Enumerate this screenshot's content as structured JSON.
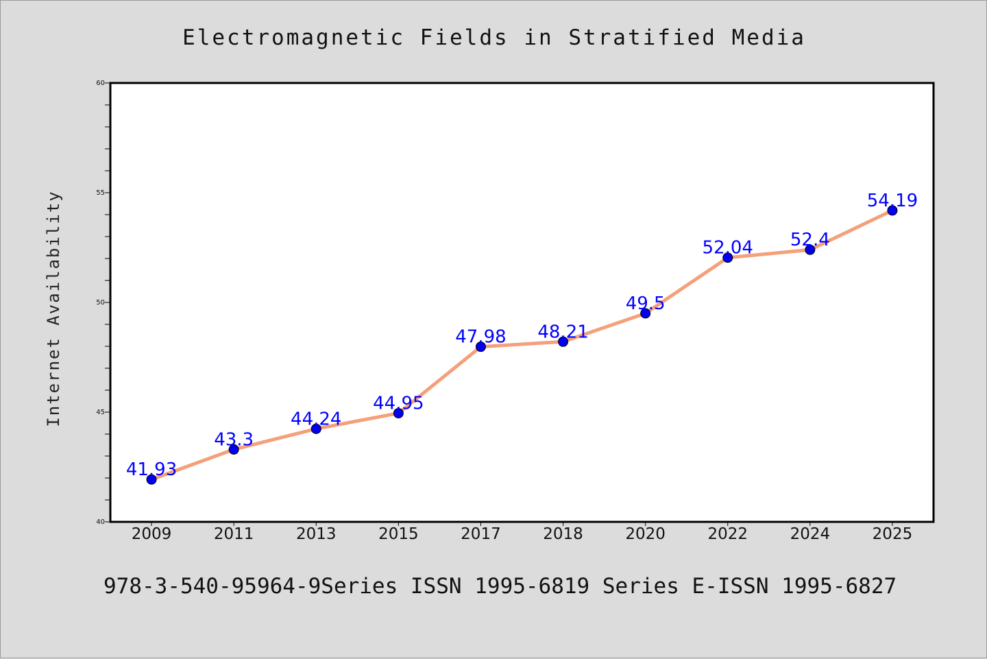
{
  "colors": {
    "background": "#dcdcdc",
    "plot_background": "#ffffff",
    "line": "#f4a07a",
    "marker": "#0000ee",
    "data_label": "#0000ff"
  },
  "footer": "978-3-540-95964-9Series ISSN 1995-6819 Series E-ISSN 1995-6827",
  "chart_data": {
    "type": "line",
    "title": "Electromagnetic Fields in Stratified Media",
    "xlabel": "",
    "ylabel": "Internet Availability",
    "categories": [
      "2009",
      "2011",
      "2013",
      "2015",
      "2017",
      "2018",
      "2020",
      "2022",
      "2024",
      "2025"
    ],
    "series": [
      {
        "values": [
          41.93,
          43.3,
          44.24,
          44.95,
          47.98,
          48.21,
          49.5,
          52.04,
          52.4,
          54.19
        ],
        "labels": [
          "41.93",
          "43.3",
          "44.24",
          "44.95",
          "47.98",
          "48.21",
          "49.5",
          "52.04",
          "52.4",
          "54.19"
        ]
      }
    ],
    "ylim": [
      40,
      60
    ],
    "yticks": [
      40,
      45,
      50,
      55,
      60
    ],
    "grid": false,
    "data_labels": true,
    "legend": "none"
  }
}
